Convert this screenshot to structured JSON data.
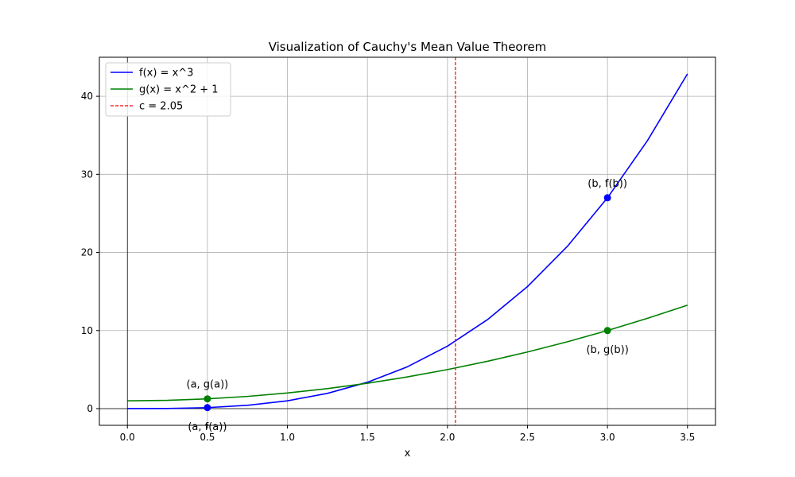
{
  "chart_data": {
    "type": "line",
    "title": "Visualization of Cauchy's Mean Value Theorem",
    "xlabel": "x",
    "ylabel": "",
    "xlim": [
      -0.175,
      3.675
    ],
    "ylim": [
      -2.14,
      45.0
    ],
    "x_ticks": [
      0.0,
      0.5,
      1.0,
      1.5,
      2.0,
      2.5,
      3.0,
      3.5
    ],
    "x_tick_labels": [
      "0.0",
      "0.5",
      "1.0",
      "1.5",
      "2.0",
      "2.5",
      "3.0",
      "3.5"
    ],
    "y_ticks": [
      0,
      10,
      20,
      30,
      40
    ],
    "y_tick_labels": [
      "0",
      "10",
      "20",
      "30",
      "40"
    ],
    "grid": true,
    "legend_position": "top-left",
    "series": [
      {
        "name": "f(x) = x^3",
        "color": "#0000ff",
        "style": "solid",
        "x": [
          0.0,
          0.25,
          0.5,
          0.75,
          1.0,
          1.25,
          1.5,
          1.75,
          2.0,
          2.25,
          2.5,
          2.75,
          3.0,
          3.25,
          3.5
        ],
        "y": [
          0.0,
          0.016,
          0.125,
          0.422,
          1.0,
          1.953,
          3.375,
          5.359,
          8.0,
          11.391,
          15.625,
          20.797,
          27.0,
          34.328,
          42.875
        ]
      },
      {
        "name": "g(x) = x^2 + 1",
        "color": "#008000",
        "style": "solid",
        "x": [
          0.0,
          0.25,
          0.5,
          0.75,
          1.0,
          1.25,
          1.5,
          1.75,
          2.0,
          2.25,
          2.5,
          2.75,
          3.0,
          3.25,
          3.5
        ],
        "y": [
          1.0,
          1.063,
          1.25,
          1.563,
          2.0,
          2.563,
          3.25,
          4.063,
          5.0,
          6.063,
          7.25,
          8.563,
          10.0,
          11.563,
          13.25
        ]
      },
      {
        "name": "c = 2.05",
        "color": "#ff0000",
        "style": "dashed",
        "vline_x": 2.05
      }
    ],
    "points": [
      {
        "label": "(a, f(a))",
        "x": 0.5,
        "y": 0.125,
        "color": "#0000ff",
        "label_position": "below"
      },
      {
        "label": "(b, f(b))",
        "x": 3.0,
        "y": 27.0,
        "color": "#0000ff",
        "label_position": "above"
      },
      {
        "label": "(a, g(a))",
        "x": 0.5,
        "y": 1.25,
        "color": "#008000",
        "label_position": "above"
      },
      {
        "label": "(b, g(b))",
        "x": 3.0,
        "y": 10.0,
        "color": "#008000",
        "label_position": "below"
      }
    ],
    "reference_lines": {
      "x0": true,
      "y0": true
    }
  }
}
